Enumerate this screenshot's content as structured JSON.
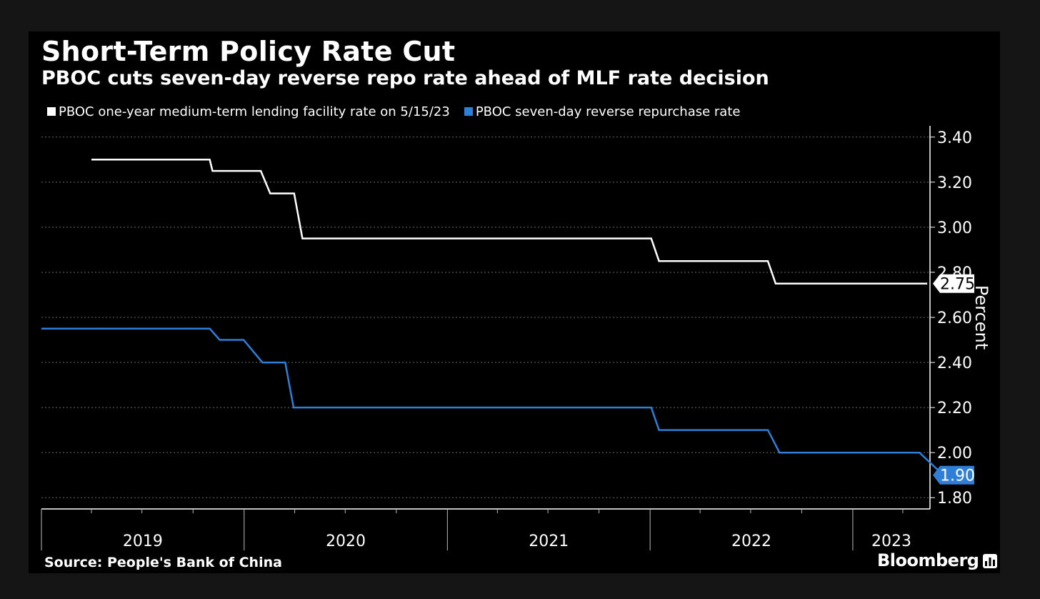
{
  "chart_data": {
    "type": "line",
    "title": "Short-Term Policy Rate Cut",
    "subtitle": "PBOC cuts seven-day reverse repo rate ahead of MLF rate decision",
    "ylabel": "Percent",
    "xlabel": "",
    "ylim": [
      1.75,
      3.45
    ],
    "yticks": [
      "3.40",
      "3.20",
      "3.00",
      "2.80",
      "2.60",
      "2.40",
      "2.20",
      "2.00",
      "1.80"
    ],
    "xlim": [
      "2019-01-01",
      "2023-05-20"
    ],
    "year_labels": [
      "2019",
      "2020",
      "2021",
      "2022",
      "2023"
    ],
    "grid": true,
    "legend_position": "top-left",
    "series": [
      {
        "name": "PBOC one-year medium-term lending facility rate on 5/15/23",
        "color": "#ffffff",
        "last_value_label": "2.75",
        "points": [
          [
            "2019-04-01",
            3.3
          ],
          [
            "2019-10-31",
            3.3
          ],
          [
            "2019-11-05",
            3.25
          ],
          [
            "2020-01-31",
            3.25
          ],
          [
            "2020-02-17",
            3.15
          ],
          [
            "2020-03-31",
            3.15
          ],
          [
            "2020-04-15",
            2.95
          ],
          [
            "2022-01-03",
            2.95
          ],
          [
            "2022-01-17",
            2.85
          ],
          [
            "2022-08-01",
            2.85
          ],
          [
            "2022-08-15",
            2.75
          ],
          [
            "2023-05-15",
            2.75
          ]
        ]
      },
      {
        "name": "PBOC seven-day reverse repurchase rate",
        "color": "#2f7ed8",
        "last_value_label": "1.90",
        "points": [
          [
            "2019-01-01",
            2.55
          ],
          [
            "2019-10-31",
            2.55
          ],
          [
            "2019-11-18",
            2.5
          ],
          [
            "2019-12-31",
            2.5
          ],
          [
            "2020-02-03",
            2.4
          ],
          [
            "2020-03-15",
            2.4
          ],
          [
            "2020-03-30",
            2.2
          ],
          [
            "2022-01-03",
            2.2
          ],
          [
            "2022-01-17",
            2.1
          ],
          [
            "2022-08-01",
            2.1
          ],
          [
            "2022-08-22",
            2.0
          ],
          [
            "2023-05-01",
            2.0
          ],
          [
            "2023-06-13",
            1.9
          ]
        ]
      }
    ]
  },
  "legend": {
    "mlf_label": "PBOC one-year medium-term lending facility rate on 5/15/23",
    "mlf_color": "#ffffff",
    "repo_label": "PBOC seven-day reverse repurchase rate",
    "repo_color": "#2f7ed8"
  },
  "footer": {
    "source": "Source: People's Bank of China",
    "brand": "Bloomberg"
  }
}
